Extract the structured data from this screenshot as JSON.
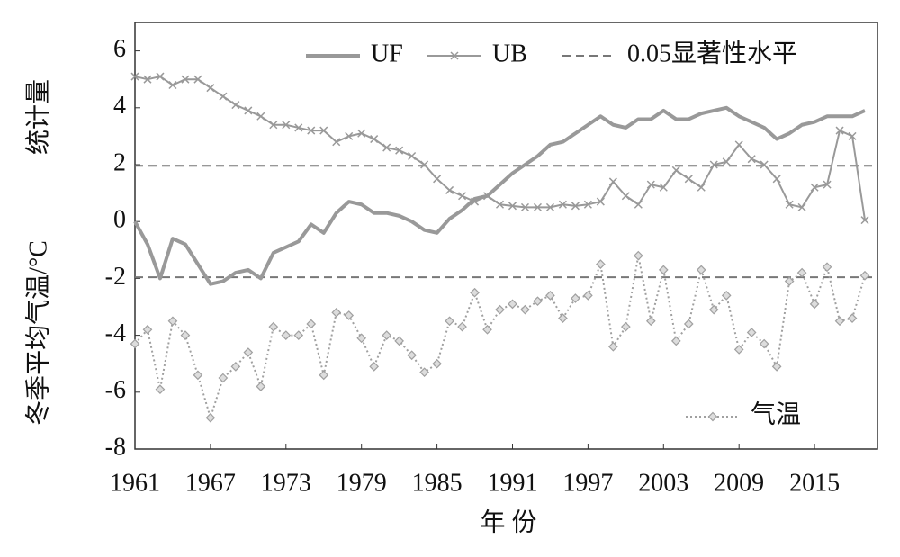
{
  "chart_data": {
    "type": "line",
    "y_label_top": "统计量",
    "y_label_bottom": "冬季平均气温/°C",
    "x_label": "年 份",
    "x": [
      1961,
      1962,
      1963,
      1964,
      1965,
      1966,
      1967,
      1968,
      1969,
      1970,
      1971,
      1972,
      1973,
      1974,
      1975,
      1976,
      1977,
      1978,
      1979,
      1980,
      1981,
      1982,
      1983,
      1984,
      1985,
      1986,
      1987,
      1988,
      1989,
      1990,
      1991,
      1992,
      1993,
      1994,
      1995,
      1996,
      1997,
      1998,
      1999,
      2000,
      2001,
      2002,
      2003,
      2004,
      2005,
      2006,
      2007,
      2008,
      2009,
      2010,
      2011,
      2012,
      2013,
      2014,
      2015,
      2016,
      2017,
      2018,
      2019
    ],
    "series": [
      {
        "name": "UF",
        "color": "#999999",
        "style": "solid",
        "values": [
          0,
          -0.8,
          -2.0,
          -0.6,
          -0.8,
          -1.5,
          -2.2,
          -2.1,
          -1.8,
          -1.7,
          -2.0,
          -1.1,
          -0.9,
          -0.7,
          -0.1,
          -0.4,
          0.3,
          0.7,
          0.6,
          0.3,
          0.3,
          0.2,
          0,
          -0.3,
          -0.4,
          0.1,
          0.4,
          0.8,
          0.9,
          1.3,
          1.7,
          2.0,
          2.3,
          2.7,
          2.8,
          3.1,
          3.4,
          3.7,
          3.4,
          3.3,
          3.6,
          3.6,
          3.9,
          3.6,
          3.6,
          3.8,
          3.9,
          4.0,
          3.7,
          3.5,
          3.3,
          2.9,
          3.1,
          3.4,
          3.5,
          3.7,
          3.7,
          3.7,
          3.9
        ]
      },
      {
        "name": "UB",
        "color": "#999999",
        "style": "cross",
        "values": [
          5.1,
          5.0,
          5.1,
          4.8,
          5.0,
          5.0,
          4.7,
          4.4,
          4.1,
          3.9,
          3.7,
          3.4,
          3.4,
          3.3,
          3.2,
          3.2,
          2.8,
          3.0,
          3.1,
          2.9,
          2.6,
          2.5,
          2.3,
          2.0,
          1.5,
          1.1,
          0.9,
          0.7,
          0.9,
          0.6,
          0.55,
          0.5,
          0.5,
          0.5,
          0.6,
          0.55,
          0.6,
          0.7,
          1.4,
          0.9,
          0.6,
          1.3,
          1.2,
          1.8,
          1.5,
          1.2,
          2.0,
          2.1,
          2.7,
          2.2,
          2.0,
          1.5,
          0.6,
          0.5,
          1.2,
          1.3,
          3.2,
          3.0,
          0.05
        ]
      },
      {
        "name": "气温",
        "color": "#a0a0a0",
        "style": "dotted",
        "values": [
          -4.3,
          -3.8,
          -5.9,
          -3.5,
          -4.0,
          -5.4,
          -6.9,
          -5.5,
          -5.1,
          -4.6,
          -5.8,
          -3.7,
          -4.0,
          -4.0,
          -3.6,
          -5.4,
          -3.2,
          -3.3,
          -4.1,
          -5.1,
          -4.0,
          -4.2,
          -4.7,
          -5.3,
          -5.0,
          -3.5,
          -3.7,
          -2.5,
          -3.8,
          -3.1,
          -2.9,
          -3.1,
          -2.8,
          -2.6,
          -3.4,
          -2.7,
          -2.6,
          -1.5,
          -4.4,
          -3.7,
          -1.2,
          -3.5,
          -1.7,
          -4.2,
          -3.6,
          -1.7,
          -3.1,
          -2.6,
          -4.5,
          -3.9,
          -4.3,
          -5.1,
          -2.1,
          -1.8,
          -2.9,
          -1.6,
          -3.5,
          -3.4,
          -1.9
        ]
      }
    ],
    "significance": {
      "name": "0.05显著性水平",
      "color": "#777777",
      "values": [
        1.96,
        -1.96
      ]
    },
    "xlim": [
      1961,
      2020
    ],
    "xticks": [
      1961,
      1967,
      1973,
      1979,
      1985,
      1991,
      1997,
      2003,
      2009,
      2015
    ],
    "ylim": [
      -8,
      7
    ],
    "yticks": [
      -8,
      -6,
      -4,
      -2,
      0,
      2,
      4,
      6
    ]
  }
}
